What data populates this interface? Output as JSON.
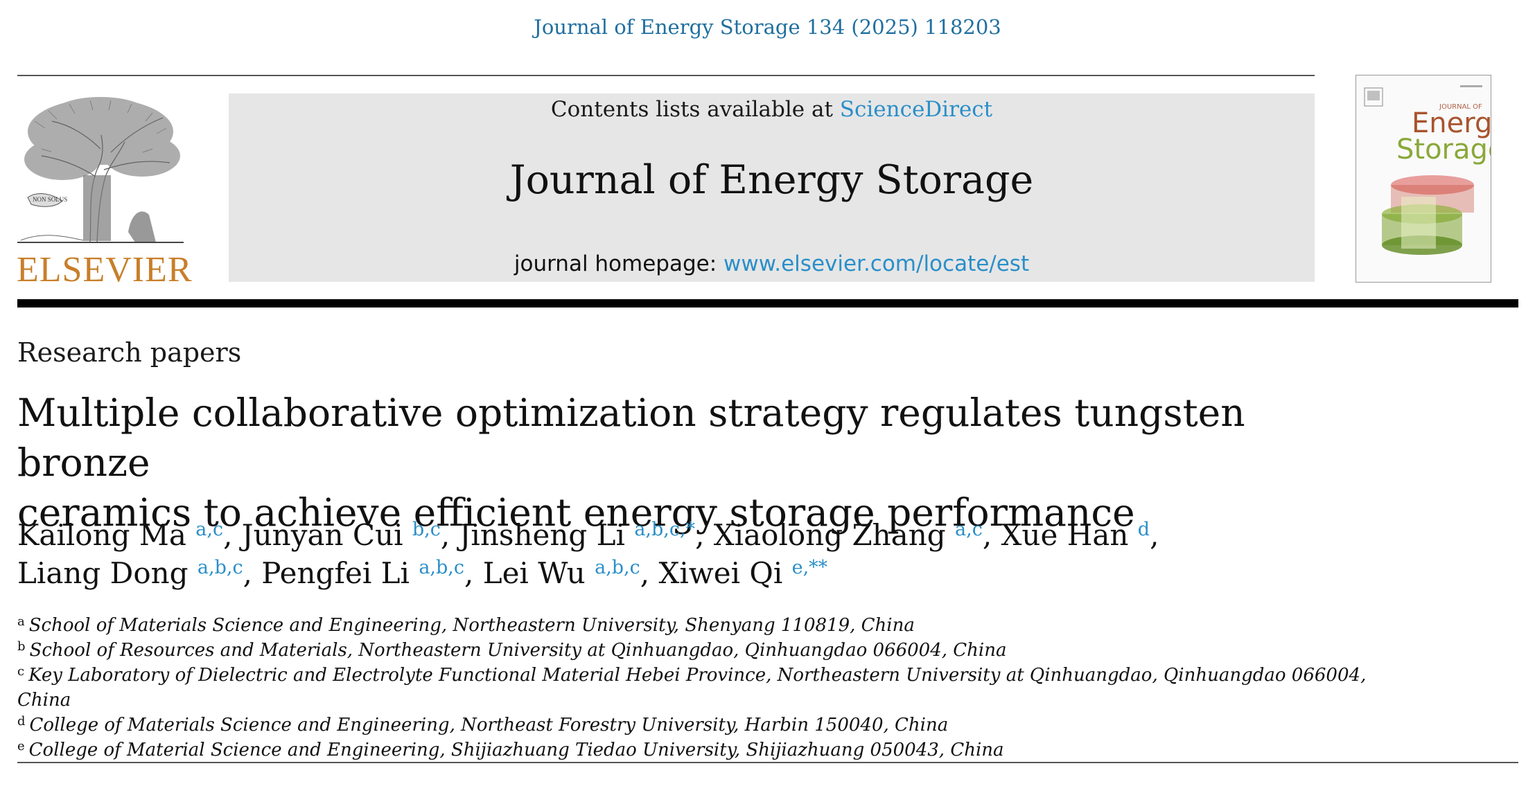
{
  "header": {
    "citation": "Journal of Energy Storage 134 (2025) 118203",
    "publisher_word": "ELSEVIER",
    "logo_motto": "NON SOLUS",
    "contents_prefix": "Contents lists available at ",
    "contents_link": "ScienceDirect",
    "journal_name": "Journal of Energy Storage",
    "homepage_prefix": "journal homepage: ",
    "homepage_link": "www.elsevier.com/locate/est",
    "cover_line1": "JOURNAL OF",
    "cover_line2": "Energy",
    "cover_line3": "Storage"
  },
  "article": {
    "section": "Research papers",
    "title_line1": "Multiple collaborative optimization strategy regulates tungsten bronze",
    "title_line2": "ceramics to achieve efficient energy storage performance",
    "authors": [
      {
        "name": "Kailong Ma",
        "affs": "a,c",
        "sep": ", "
      },
      {
        "name": "Junyan Cui",
        "affs": "b,c",
        "sep": ", "
      },
      {
        "name": "Jinsheng Li",
        "affs": "a,b,c,*",
        "sep": ", "
      },
      {
        "name": "Xiaolong Zhang",
        "affs": "a,c",
        "sep": ", "
      },
      {
        "name": "Xue Han",
        "affs": "d",
        "sep": ","
      },
      {
        "name": "Liang Dong",
        "affs": "a,b,c",
        "sep": ", "
      },
      {
        "name": "Pengfei Li",
        "affs": "a,b,c",
        "sep": ", "
      },
      {
        "name": "Lei Wu",
        "affs": "a,b,c",
        "sep": ", "
      },
      {
        "name": "Xiwei Qi",
        "affs": "e,**",
        "sep": ""
      }
    ],
    "affiliations": [
      {
        "key": "a",
        "text": "School of Materials Science and Engineering, Northeastern University, Shenyang 110819, China"
      },
      {
        "key": "b",
        "text": "School of Resources and Materials, Northeastern University at Qinhuangdao, Qinhuangdao 066004, China"
      },
      {
        "key": "c",
        "text": "Key Laboratory of Dielectric and Electrolyte Functional Material Hebei Province, Northeastern University at Qinhuangdao, Qinhuangdao 066004, China"
      },
      {
        "key": "d",
        "text": "College of Materials Science and Engineering, Northeast Forestry University, Harbin 150040, China"
      },
      {
        "key": "e",
        "text": "College of Material Science and Engineering, Shijiazhuang Tiedao University, Shijiazhuang 050043, China"
      }
    ]
  },
  "colors": {
    "link": "#2a8fc9",
    "citation": "#1f6f9f",
    "elsevier_orange": "#c87f2a",
    "banner_bg": "#e6e6e6"
  }
}
